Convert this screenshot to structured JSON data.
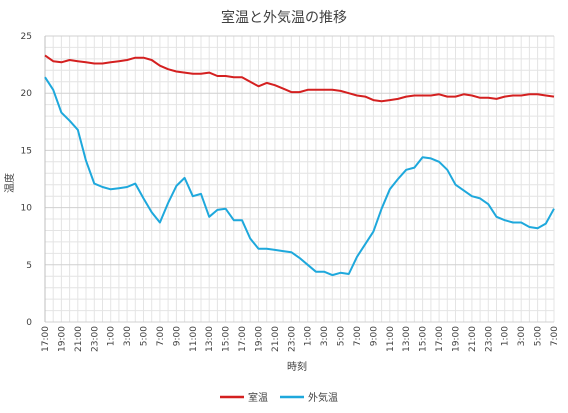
{
  "chart_data": {
    "type": "line",
    "title": "室温と外気温の推移",
    "xlabel": "時刻",
    "ylabel": "温度",
    "ylim": [
      0,
      25
    ],
    "y_ticks": [
      0,
      5,
      10,
      15,
      20,
      25
    ],
    "grid": true,
    "legend": "bottom",
    "x_tick_labels": [
      "17:00",
      "19:00",
      "21:00",
      "23:00",
      "1:00",
      "3:00",
      "5:00",
      "7:00",
      "9:00",
      "11:00",
      "13:00",
      "15:00",
      "17:00",
      "19:00",
      "21:00",
      "23:00",
      "1:00",
      "3:00",
      "5:00",
      "7:00",
      "9:00",
      "11:00",
      "13:00",
      "15:00",
      "17:00",
      "19:00",
      "21:00",
      "23:00",
      "1:00",
      "3:00",
      "5:00",
      "7:00"
    ],
    "series": [
      {
        "name": "室温",
        "color": "#d42020",
        "values": [
          23.3,
          22.8,
          22.7,
          22.9,
          22.8,
          22.7,
          22.6,
          22.6,
          22.7,
          22.8,
          22.9,
          23.1,
          23.1,
          22.9,
          22.4,
          22.1,
          21.9,
          21.8,
          21.7,
          21.7,
          21.8,
          21.5,
          21.5,
          21.4,
          21.4,
          21.0,
          20.6,
          20.9,
          20.7,
          20.4,
          20.1,
          20.1,
          20.3,
          20.3,
          20.3,
          20.3,
          20.2,
          20.0,
          19.8,
          19.7,
          19.4,
          19.3,
          19.4,
          19.5,
          19.7,
          19.8,
          19.8,
          19.8,
          19.9,
          19.7,
          19.7,
          19.9,
          19.8,
          19.6,
          19.6,
          19.5,
          19.7,
          19.8,
          19.8,
          19.9,
          19.9,
          19.8,
          19.7
        ]
      },
      {
        "name": "外気温",
        "color": "#1ea8dc",
        "values": [
          21.4,
          20.3,
          18.3,
          17.6,
          16.8,
          14.1,
          12.1,
          11.8,
          11.6,
          11.7,
          11.8,
          12.1,
          10.8,
          9.6,
          8.7,
          10.4,
          11.9,
          12.6,
          11.0,
          11.2,
          9.2,
          9.8,
          9.9,
          8.9,
          8.9,
          7.3,
          6.4,
          6.4,
          6.3,
          6.2,
          6.1,
          5.6,
          5.0,
          4.4,
          4.4,
          4.1,
          4.3,
          4.2,
          5.7,
          6.8,
          7.9,
          9.9,
          11.6,
          12.5,
          13.3,
          13.5,
          14.4,
          14.3,
          14.0,
          13.3,
          12.0,
          11.5,
          11.0,
          10.8,
          10.3,
          9.2,
          8.9,
          8.7,
          8.7,
          8.3,
          8.2,
          8.6,
          9.9
        ]
      }
    ]
  }
}
